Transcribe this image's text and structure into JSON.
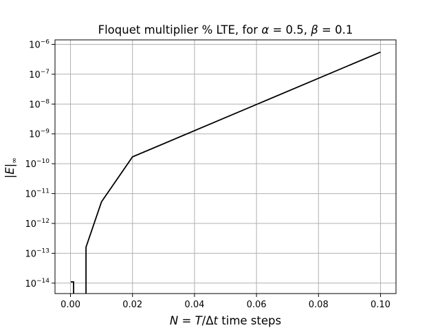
{
  "chart_data": {
    "type": "line",
    "title": "Floquet multiplier % LTE, for α = 0.5, β = 0.1",
    "xlabel": "N = T/Δt time steps",
    "ylabel": "|E|∞",
    "xscale": "linear",
    "yscale": "log",
    "xlim": [
      -0.005,
      0.105
    ],
    "ylim_exponent": [
      -14.35,
      -5.85
    ],
    "grid": true,
    "x_ticks": [
      {
        "value": 0.0,
        "label": "0.00"
      },
      {
        "value": 0.02,
        "label": "0.02"
      },
      {
        "value": 0.04,
        "label": "0.04"
      },
      {
        "value": 0.06,
        "label": "0.06"
      },
      {
        "value": 0.08,
        "label": "0.08"
      },
      {
        "value": 0.1,
        "label": "0.10"
      }
    ],
    "y_ticks": [
      {
        "exponent": -14,
        "base": "10",
        "sup": "−14"
      },
      {
        "exponent": -13,
        "base": "10",
        "sup": "−13"
      },
      {
        "exponent": -12,
        "base": "10",
        "sup": "−12"
      },
      {
        "exponent": -11,
        "base": "10",
        "sup": "−11"
      },
      {
        "exponent": -10,
        "base": "10",
        "sup": "−10"
      },
      {
        "exponent": -9,
        "base": "10",
        "sup": "−9"
      },
      {
        "exponent": -8,
        "base": "10",
        "sup": "−8"
      },
      {
        "exponent": -7,
        "base": "10",
        "sup": "−7"
      },
      {
        "exponent": -6,
        "base": "10",
        "sup": "−6"
      }
    ],
    "series": [
      {
        "color": "#000000",
        "points": [
          {
            "x": 0.0001,
            "y": 1.1e-14
          },
          {
            "x": 0.001,
            "y": 1.1e-14
          },
          {
            "x": 0.001,
            "y": 1e-15
          },
          {
            "x": 0.005,
            "y": 1e-15
          },
          {
            "x": 0.005,
            "y": 1.6e-13
          },
          {
            "x": 0.01,
            "y": 5.3e-12
          },
          {
            "x": 0.02,
            "y": 1.7e-10
          },
          {
            "x": 0.1,
            "y": 5.5e-07
          }
        ]
      }
    ]
  }
}
